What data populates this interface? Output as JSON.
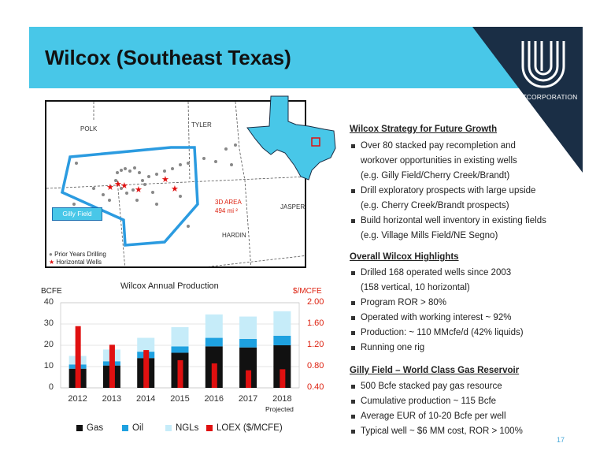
{
  "header": {
    "title": "Wilcox (Southeast Texas)",
    "logo_unit": "UNIT",
    "logo_corp": "CORPORATION"
  },
  "map": {
    "polk": "POLK",
    "tyler": "TYLER",
    "jasper": "JASPER",
    "hardin": "HARDIN",
    "area_line1": "3D AREA",
    "area_line2": "494 mi",
    "gilly": "Gilly Field",
    "legend_wells": "Prior Years Drilling",
    "legend_horizontal": "Horizontal Wells"
  },
  "right": {
    "h1": "Wilcox Strategy for Future Growth",
    "s1a": "Over 80 stacked pay recompletion and",
    "s1b": "workover opportunities in existing wells",
    "s1c": "(e.g. Gilly Field/Cherry Creek/Brandt)",
    "s2a": "Drill exploratory prospects with large upside",
    "s2b": "(e.g. Cherry Creek/Brandt prospects)",
    "s3a": "Build horizontal well inventory in existing fields",
    "s3b": "(e.g. Village Mills Field/NE Segno)",
    "h2": "Overall Wilcox Highlights",
    "o1a": "Drilled 168 operated wells since 2003",
    "o1b": "(158 vertical, 10 horizontal)",
    "o2": "Program ROR > 80%",
    "o3": "Operated with working interest ~ 92%",
    "o4": "Production: ~ 110 MMcfe/d (42% liquids)",
    "o5": "Running one rig",
    "h3": "Gilly Field – World Class Gas Reservoir",
    "g1": "500 Bcfe stacked pay gas resource",
    "g2": "Cumulative production ~ 115 Bcfe",
    "g3": "Average EUR of 10-20 Bcfe per well",
    "g4": "Typical well ~ $6 MM cost, ROR > 100%"
  },
  "page_number": "17",
  "chart_data": {
    "type": "bar",
    "title": "Wilcox Annual Production",
    "ylabel_left": "BCFE",
    "ylabel_right": "$/MCFE",
    "categories": [
      "2012",
      "2013",
      "2014",
      "2015",
      "2016",
      "2017",
      "2018"
    ],
    "projected_label": "Projected",
    "ylim_left": [
      0,
      40
    ],
    "ylim_right": [
      0.4,
      2.0
    ],
    "yticks_left": [
      "0",
      "10",
      "20",
      "30",
      "40"
    ],
    "yticks_right": [
      "0.40",
      "0.80",
      "1.20",
      "1.60",
      "2.00"
    ],
    "series": [
      {
        "name": "Gas",
        "color": "#111111",
        "values": [
          9,
          10.5,
          14,
          16.5,
          19.5,
          19,
          20
        ]
      },
      {
        "name": "Oil",
        "color": "#1ea1e0",
        "values": [
          2,
          2,
          3,
          3,
          4,
          4,
          4.5
        ]
      },
      {
        "name": "NGLs",
        "color": "#c6ecf9",
        "values": [
          4,
          5.5,
          6.5,
          9,
          11,
          10.5,
          11.5
        ]
      },
      {
        "name": "LOEX ($/MCFE)",
        "color": "#e01010",
        "axis": "right",
        "values": [
          1.56,
          1.21,
          1.11,
          0.92,
          0.86,
          0.73,
          0.75
        ]
      }
    ],
    "legend_position": "bottom"
  }
}
